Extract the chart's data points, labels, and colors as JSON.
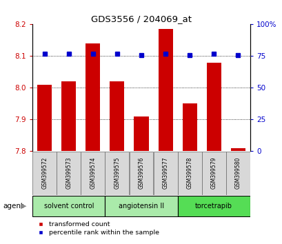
{
  "title": "GDS3556 / 204069_at",
  "samples": [
    "GSM399572",
    "GSM399573",
    "GSM399574",
    "GSM399575",
    "GSM399576",
    "GSM399577",
    "GSM399578",
    "GSM399579",
    "GSM399580"
  ],
  "red_values": [
    8.01,
    8.02,
    8.14,
    8.02,
    7.91,
    8.185,
    7.95,
    8.08,
    7.81
  ],
  "blue_values": [
    77,
    77,
    77,
    77,
    76,
    77,
    76,
    77,
    76
  ],
  "ylim_left": [
    7.8,
    8.2
  ],
  "ylim_right": [
    0,
    100
  ],
  "yticks_left": [
    7.8,
    7.9,
    8.0,
    8.1,
    8.2
  ],
  "yticks_right": [
    0,
    25,
    50,
    75,
    100
  ],
  "group_bounds": [
    [
      0,
      2,
      "solvent control",
      "#aaeaaa"
    ],
    [
      3,
      5,
      "angiotensin II",
      "#aaeaaa"
    ],
    [
      6,
      8,
      "torcetrapib",
      "#55dd55"
    ]
  ],
  "bar_color": "#cc0000",
  "dot_color": "#0000cc",
  "bar_width": 0.6,
  "background_color": "#ffffff",
  "legend_items": [
    "transformed count",
    "percentile rank within the sample"
  ],
  "legend_colors": [
    "#cc0000",
    "#0000cc"
  ],
  "agent_label": "agent"
}
